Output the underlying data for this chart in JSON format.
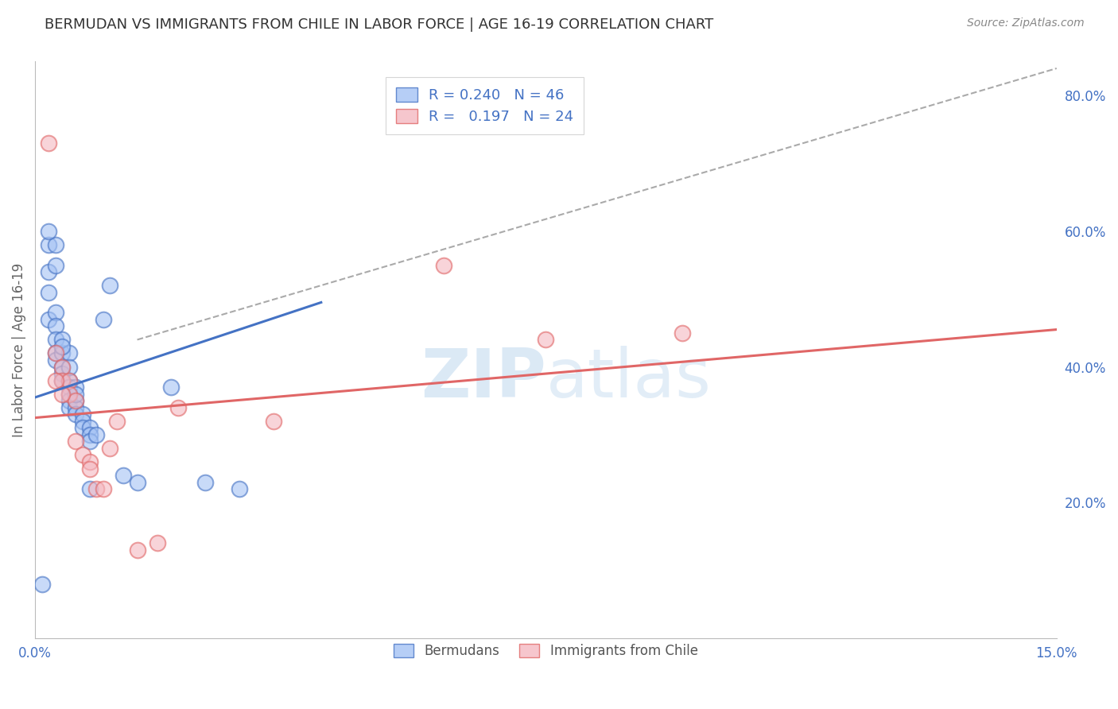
{
  "title": "BERMUDAN VS IMMIGRANTS FROM CHILE IN LABOR FORCE | AGE 16-19 CORRELATION CHART",
  "source": "Source: ZipAtlas.com",
  "ylabel": "In Labor Force | Age 16-19",
  "xlim": [
    0.0,
    0.15
  ],
  "ylim": [
    0.0,
    0.85
  ],
  "xtick_positions": [
    0.0,
    0.05,
    0.1,
    0.15
  ],
  "xticklabels": [
    "0.0%",
    "",
    "",
    "15.0%"
  ],
  "yticks_right": [
    0.2,
    0.4,
    0.6,
    0.8
  ],
  "ytick_right_labels": [
    "20.0%",
    "40.0%",
    "60.0%",
    "80.0%"
  ],
  "legend_r1": "R = 0.240",
  "legend_n1": "N = 46",
  "legend_r2": "R =   0.197",
  "legend_n2": "N = 24",
  "blue_color": "#a4c2f4",
  "pink_color": "#f4b8c1",
  "trend_blue": "#4472c4",
  "trend_pink": "#e06666",
  "trend_dashed_color": "#aaaaaa",
  "grid_color": "#cccccc",
  "label_color": "#4472c4",
  "title_color": "#333333",
  "watermark_color": "#d6e8f7",
  "bermuda_x": [
    0.001,
    0.002,
    0.002,
    0.002,
    0.002,
    0.003,
    0.003,
    0.003,
    0.003,
    0.003,
    0.004,
    0.004,
    0.004,
    0.004,
    0.005,
    0.005,
    0.005,
    0.005,
    0.005,
    0.006,
    0.006,
    0.006,
    0.007,
    0.007,
    0.007,
    0.008,
    0.008,
    0.008,
    0.009,
    0.01,
    0.011,
    0.013,
    0.015,
    0.02,
    0.025,
    0.03,
    0.003,
    0.004,
    0.005,
    0.006,
    0.002,
    0.003,
    0.004,
    0.005,
    0.006,
    0.008
  ],
  "bermuda_y": [
    0.08,
    0.58,
    0.54,
    0.51,
    0.47,
    0.48,
    0.46,
    0.44,
    0.42,
    0.41,
    0.42,
    0.4,
    0.39,
    0.38,
    0.38,
    0.37,
    0.36,
    0.35,
    0.34,
    0.35,
    0.34,
    0.33,
    0.33,
    0.32,
    0.31,
    0.31,
    0.3,
    0.29,
    0.3,
    0.47,
    0.52,
    0.24,
    0.23,
    0.37,
    0.23,
    0.22,
    0.58,
    0.44,
    0.42,
    0.37,
    0.6,
    0.55,
    0.43,
    0.4,
    0.36,
    0.22
  ],
  "chile_x": [
    0.002,
    0.003,
    0.004,
    0.004,
    0.005,
    0.005,
    0.006,
    0.006,
    0.007,
    0.008,
    0.008,
    0.009,
    0.01,
    0.011,
    0.012,
    0.015,
    0.018,
    0.021,
    0.035,
    0.06,
    0.075,
    0.095,
    0.003,
    0.004
  ],
  "chile_y": [
    0.73,
    0.42,
    0.4,
    0.38,
    0.38,
    0.36,
    0.35,
    0.29,
    0.27,
    0.26,
    0.25,
    0.22,
    0.22,
    0.28,
    0.32,
    0.13,
    0.14,
    0.34,
    0.32,
    0.55,
    0.44,
    0.45,
    0.38,
    0.36
  ],
  "blue_trend_x": [
    0.0,
    0.042
  ],
  "blue_trend_y": [
    0.355,
    0.495
  ],
  "pink_trend_x": [
    0.0,
    0.15
  ],
  "pink_trend_y": [
    0.325,
    0.455
  ],
  "dashed_trend_x": [
    0.015,
    0.15
  ],
  "dashed_trend_y": [
    0.44,
    0.84
  ]
}
